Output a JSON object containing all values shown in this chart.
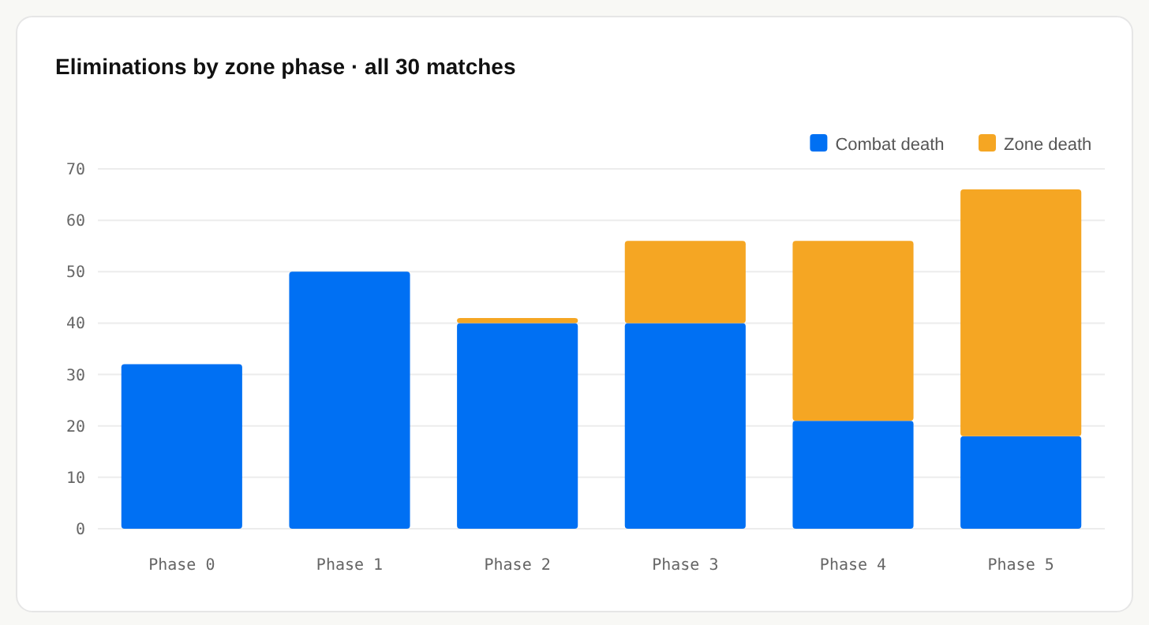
{
  "chart_data": {
    "type": "bar",
    "title": "Eliminations by zone phase · all 30 matches",
    "categories": [
      "Phase 0",
      "Phase 1",
      "Phase 2",
      "Phase 3",
      "Phase 4",
      "Phase 5"
    ],
    "stacked": true,
    "series": [
      {
        "name": "Combat death",
        "color": "#0070f3",
        "values": [
          32,
          50,
          40,
          40,
          21,
          18
        ]
      },
      {
        "name": "Zone death",
        "color": "#f5a623",
        "values": [
          0,
          0,
          1,
          16,
          35,
          48
        ]
      }
    ],
    "ylim": [
      0,
      70
    ],
    "yticks": [
      0,
      10,
      20,
      30,
      40,
      50,
      60,
      70
    ],
    "grid": "y",
    "legend": "top right"
  }
}
